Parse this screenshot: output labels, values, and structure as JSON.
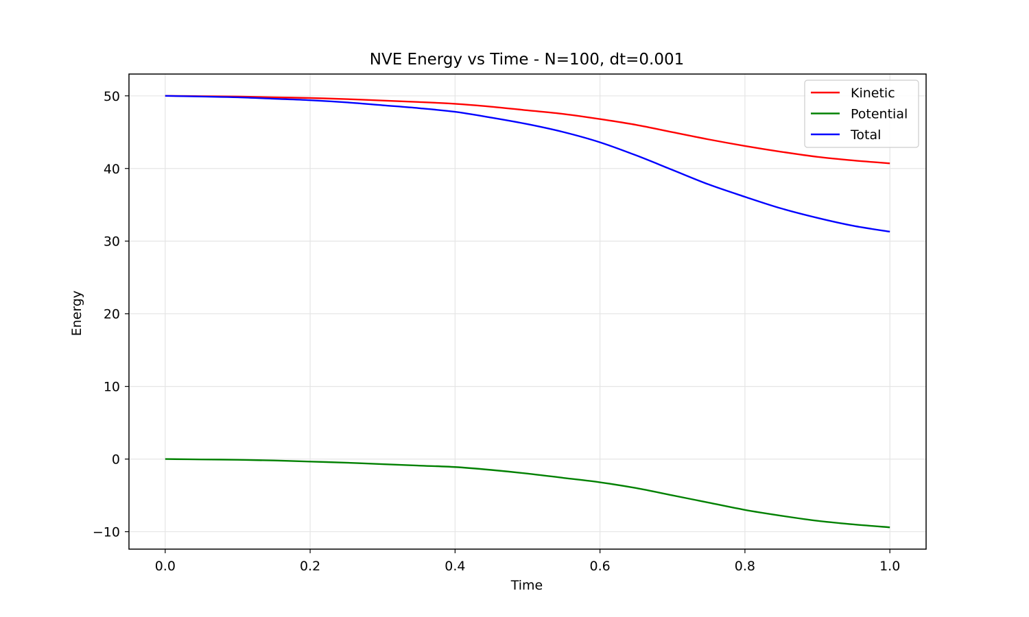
{
  "chart_data": {
    "type": "line",
    "title": "NVE Energy vs Time - N=100, dt=0.001",
    "xlabel": "Time",
    "ylabel": "Energy",
    "xlim": [
      -0.05,
      1.05
    ],
    "ylim": [
      -12.4,
      53
    ],
    "x_ticks": [
      0.0,
      0.2,
      0.4,
      0.6,
      0.8,
      1.0
    ],
    "x_tick_labels": [
      "0.0",
      "0.2",
      "0.4",
      "0.6",
      "0.8",
      "1.0"
    ],
    "y_ticks": [
      -10,
      0,
      10,
      20,
      30,
      40,
      50
    ],
    "y_tick_labels": [
      "−10",
      "0",
      "10",
      "20",
      "30",
      "40",
      "50"
    ],
    "grid": true,
    "legend_position": "top-right",
    "x": [
      0.0,
      0.05,
      0.1,
      0.15,
      0.2,
      0.25,
      0.3,
      0.35,
      0.4,
      0.45,
      0.5,
      0.55,
      0.6,
      0.65,
      0.7,
      0.75,
      0.8,
      0.85,
      0.9,
      0.95,
      1.0
    ],
    "series": [
      {
        "name": "Kinetic",
        "color": "#ff0000",
        "values": [
          50.0,
          49.95,
          49.9,
          49.8,
          49.7,
          49.55,
          49.35,
          49.15,
          48.9,
          48.5,
          48.0,
          47.5,
          46.8,
          46.0,
          45.0,
          44.0,
          43.1,
          42.3,
          41.6,
          41.1,
          40.7
        ]
      },
      {
        "name": "Potential",
        "color": "#008000",
        "values": [
          0.0,
          -0.05,
          -0.1,
          -0.2,
          -0.35,
          -0.5,
          -0.7,
          -0.9,
          -1.1,
          -1.5,
          -2.0,
          -2.6,
          -3.2,
          -4.0,
          -5.0,
          -6.0,
          -7.0,
          -7.8,
          -8.5,
          -9.0,
          -9.4
        ]
      },
      {
        "name": "Total",
        "color": "#0000ff",
        "values": [
          50.0,
          49.9,
          49.8,
          49.6,
          49.4,
          49.1,
          48.7,
          48.3,
          47.8,
          47.0,
          46.1,
          45.0,
          43.6,
          41.8,
          39.8,
          37.8,
          36.1,
          34.5,
          33.2,
          32.1,
          31.3
        ]
      }
    ]
  }
}
